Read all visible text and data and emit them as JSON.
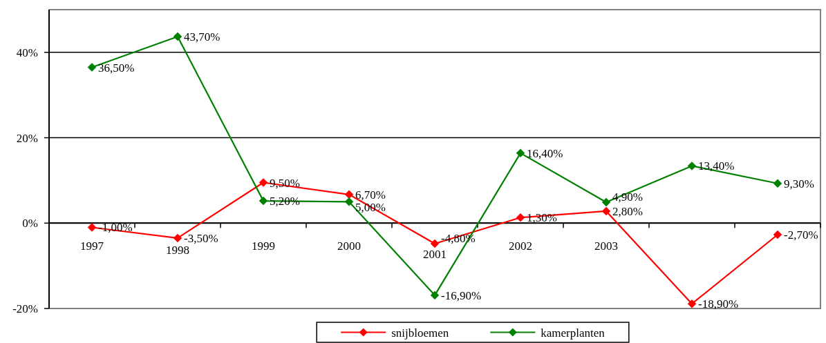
{
  "chart_data": {
    "type": "line",
    "categories": [
      "1997",
      "1998",
      "1999",
      "2000",
      "2001",
      "2002",
      "2003",
      null,
      null
    ],
    "series": [
      {
        "name": "snijbloemen",
        "color": "#ff0000",
        "values": [
          -1.0,
          -3.5,
          9.5,
          6.7,
          -4.8,
          1.3,
          2.8,
          -18.9,
          -2.7
        ],
        "value_labels": [
          "-1,00%",
          "-3,50%",
          "9,50%",
          "6,70%",
          "-4,80%",
          "1,30%",
          "2,80%",
          "-18,90%",
          "-2,70%"
        ]
      },
      {
        "name": "kamerplanten",
        "color": "#008000",
        "values": [
          36.5,
          43.7,
          5.2,
          5.0,
          -16.9,
          16.4,
          4.9,
          13.4,
          9.3
        ],
        "value_labels": [
          "36,50%",
          "43,70%",
          "5,20%",
          "5,00%",
          "-16,90%",
          "16,40%",
          "4,90%",
          "13,40%",
          "9,30%"
        ]
      }
    ],
    "ylim": [
      -20,
      50
    ],
    "yticks": [
      {
        "value": -20,
        "label": "-20%"
      },
      {
        "value": 0,
        "label": "0%"
      },
      {
        "value": 20,
        "label": "20%"
      },
      {
        "value": 40,
        "label": "40%"
      }
    ],
    "grid": "y",
    "legend": "bottom",
    "marker": "diamond"
  }
}
